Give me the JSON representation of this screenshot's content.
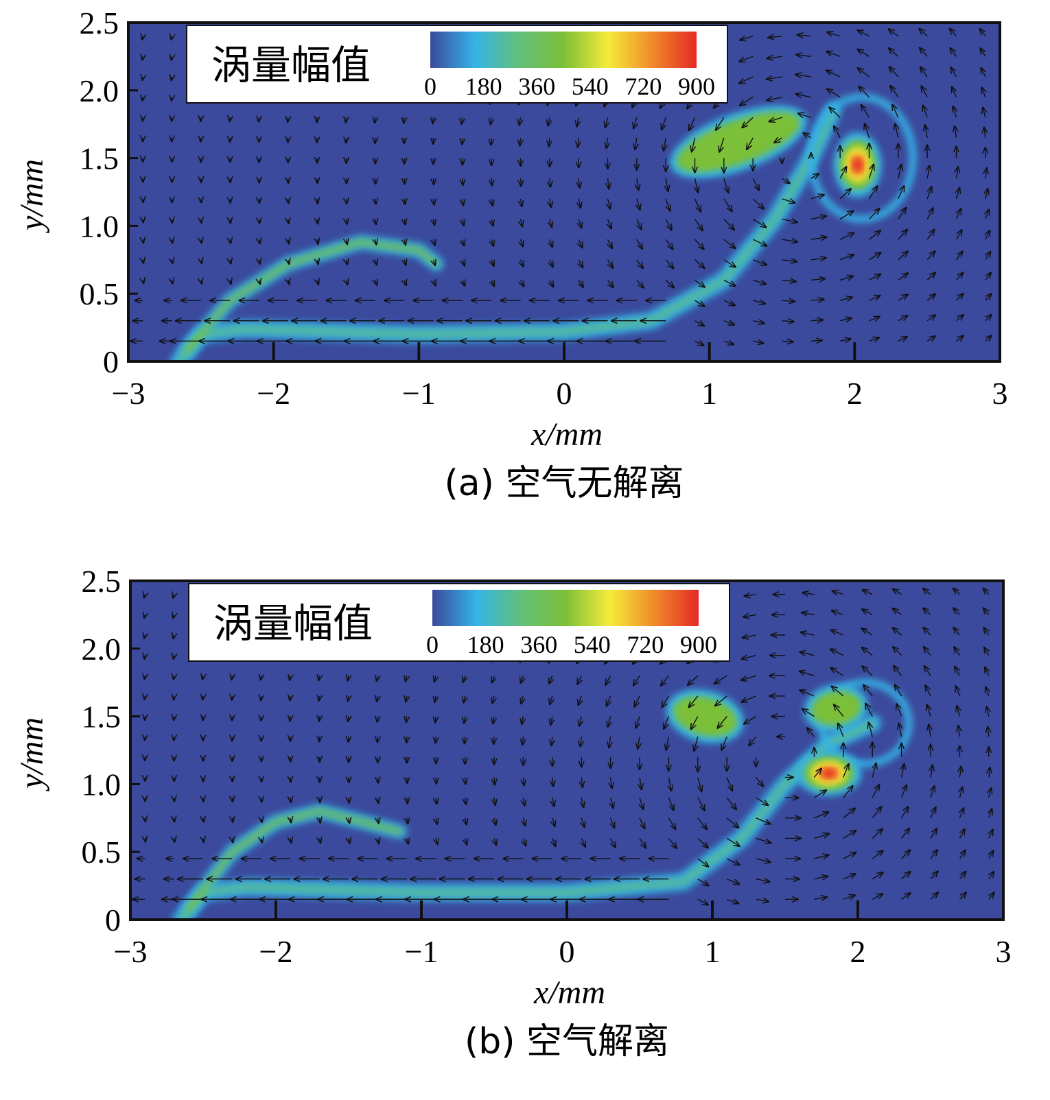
{
  "chart_data": [
    {
      "type": "contour",
      "caption": "(a) 空气无解离",
      "xlabel": "x/mm",
      "ylabel": "y/mm",
      "xlim": [
        -3,
        3
      ],
      "xticks": [
        {
          "value": -3,
          "label": "−3"
        },
        {
          "value": -2,
          "label": "−2"
        },
        {
          "value": -1,
          "label": "−1"
        },
        0,
        1,
        2,
        3
      ],
      "ylim": [
        0,
        2.5
      ],
      "yticks": [
        0,
        0.5,
        {
          "value": 1,
          "label": "1.0"
        },
        1.5,
        {
          "value": 2,
          "label": "2.0"
        },
        2.5
      ],
      "colorbar": {
        "label": "涡量幅值",
        "clim": [
          0,
          900
        ],
        "ticks": [
          0,
          180,
          360,
          540,
          720,
          900
        ],
        "colors": [
          "#3b4a9c",
          "#35b4e6",
          "#62c07a",
          "#7cbf38",
          "#f5ec3a",
          "#f08a2a",
          "#e42a26"
        ]
      }
    },
    {
      "type": "contour",
      "caption": "(b) 空气解离",
      "xlabel": "x/mm",
      "ylabel": "y/mm",
      "xlim": [
        -3,
        3
      ],
      "xticks": [
        {
          "value": -3,
          "label": "−3"
        },
        {
          "value": -2,
          "label": "−2"
        },
        {
          "value": -1,
          "label": "−1"
        },
        0,
        1,
        2,
        3
      ],
      "ylim": [
        0,
        2.5
      ],
      "yticks": [
        0,
        0.5,
        {
          "value": 1,
          "label": "1.0"
        },
        1.5,
        {
          "value": 2,
          "label": "2.0"
        },
        2.5
      ],
      "colorbar": {
        "label": "涡量幅值",
        "clim": [
          0,
          900
        ],
        "ticks": [
          0,
          180,
          360,
          540,
          720,
          900
        ],
        "colors": [
          "#3b4a9c",
          "#35b4e6",
          "#62c07a",
          "#7cbf38",
          "#f5ec3a",
          "#f08a2a",
          "#e42a26"
        ]
      }
    }
  ]
}
